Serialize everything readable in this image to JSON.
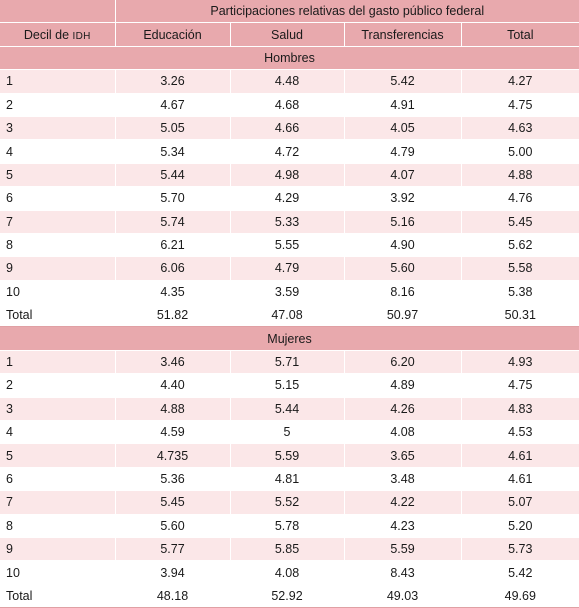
{
  "table": {
    "header_group": "Participaciones relativas del gasto público federal",
    "col0_label_main": "Decil de ",
    "col0_label_sc": "IDH",
    "columns": [
      "Educación",
      "Salud",
      "Transferencias",
      "Total"
    ],
    "sections": [
      {
        "title": "Hombres",
        "rows": [
          {
            "decil": "1",
            "values": [
              "3.26",
              "4.48",
              "5.42",
              "4.27"
            ]
          },
          {
            "decil": "2",
            "values": [
              "4.67",
              "4.68",
              "4.91",
              "4.75"
            ]
          },
          {
            "decil": "3",
            "values": [
              "5.05",
              "4.66",
              "4.05",
              "4.63"
            ]
          },
          {
            "decil": "4",
            "values": [
              "5.34",
              "4.72",
              "4.79",
              "5.00"
            ]
          },
          {
            "decil": "5",
            "values": [
              "5.44",
              "4.98",
              "4.07",
              "4.88"
            ]
          },
          {
            "decil": "6",
            "values": [
              "5.70",
              "4.29",
              "3.92",
              "4.76"
            ]
          },
          {
            "decil": "7",
            "values": [
              "5.74",
              "5.33",
              "5.16",
              "5.45"
            ]
          },
          {
            "decil": "8",
            "values": [
              "6.21",
              "5.55",
              "4.90",
              "5.62"
            ]
          },
          {
            "decil": "9",
            "values": [
              "6.06",
              "4.79",
              "5.60",
              "5.58"
            ]
          },
          {
            "decil": "10",
            "values": [
              "4.35",
              "3.59",
              "8.16",
              "5.38"
            ]
          }
        ],
        "total": {
          "label": "Total",
          "values": [
            "51.82",
            "47.08",
            "50.97",
            "50.31"
          ]
        }
      },
      {
        "title": "Mujeres",
        "rows": [
          {
            "decil": "1",
            "values": [
              "3.46",
              "5.71",
              "6.20",
              "4.93"
            ]
          },
          {
            "decil": "2",
            "values": [
              "4.40",
              "5.15",
              "4.89",
              "4.75"
            ]
          },
          {
            "decil": "3",
            "values": [
              "4.88",
              "5.44",
              "4.26",
              "4.83"
            ]
          },
          {
            "decil": "4",
            "values": [
              "4.59",
              "5",
              "4.08",
              "4.53"
            ]
          },
          {
            "decil": "5",
            "values": [
              "4.735",
              "5.59",
              "3.65",
              "4.61"
            ]
          },
          {
            "decil": "6",
            "values": [
              "5.36",
              "4.81",
              "3.48",
              "4.61"
            ]
          },
          {
            "decil": "7",
            "values": [
              "5.45",
              "5.52",
              "4.22",
              "5.07"
            ]
          },
          {
            "decil": "8",
            "values": [
              "5.60",
              "5.78",
              "4.23",
              "5.20"
            ]
          },
          {
            "decil": "9",
            "values": [
              "5.77",
              "5.85",
              "5.59",
              "5.73"
            ]
          },
          {
            "decil": "10",
            "values": [
              "3.94",
              "4.08",
              "8.43",
              "5.42"
            ]
          }
        ],
        "total": {
          "label": "Total",
          "values": [
            "48.18",
            "52.92",
            "49.03",
            "49.69"
          ]
        }
      }
    ]
  },
  "colors": {
    "header_bg": "#e8a9ad",
    "row_tint": "#fbe7e8",
    "row_plain": "#ffffff"
  }
}
